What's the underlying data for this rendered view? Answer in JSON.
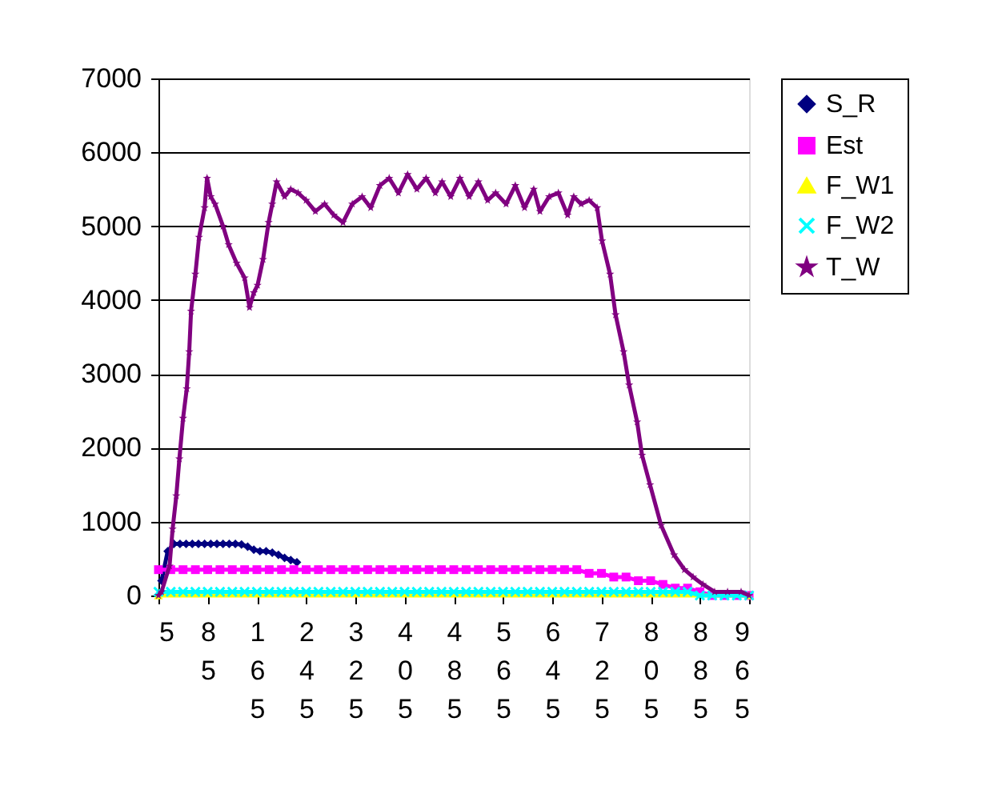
{
  "chart_data": {
    "type": "line",
    "xlim": [
      5,
      965
    ],
    "xticks": [
      5,
      85,
      165,
      245,
      325,
      405,
      485,
      565,
      645,
      725,
      805,
      885,
      965
    ],
    "ylim": [
      0,
      7000
    ],
    "yticks": [
      0,
      1000,
      2000,
      3000,
      4000,
      5000,
      6000,
      7000
    ],
    "grid": "y",
    "legend": "right",
    "line_style": "solid",
    "series": [
      {
        "name": "S_R",
        "color": "#000080",
        "marker": "diamond",
        "x": [
          10,
          20,
          30,
          40,
          50,
          60,
          70,
          80,
          90,
          100,
          110,
          120,
          130,
          140,
          150,
          160,
          170,
          180,
          190,
          200,
          210,
          220,
          230
        ],
        "values": [
          200,
          600,
          700,
          700,
          700,
          700,
          700,
          700,
          700,
          700,
          700,
          700,
          700,
          690,
          660,
          620,
          600,
          600,
          580,
          550,
          510,
          480,
          450
        ]
      },
      {
        "name": "Est",
        "color": "#ff00ff",
        "marker": "square",
        "x": [
          5,
          25,
          45,
          65,
          85,
          105,
          125,
          145,
          165,
          185,
          205,
          225,
          245,
          265,
          285,
          305,
          325,
          345,
          365,
          385,
          405,
          425,
          445,
          465,
          485,
          505,
          525,
          545,
          565,
          585,
          605,
          625,
          645,
          665,
          685,
          705,
          725,
          745,
          765,
          785,
          805,
          825,
          845,
          865,
          885,
          905,
          925,
          945,
          965
        ],
        "values": [
          350,
          350,
          350,
          350,
          350,
          350,
          350,
          350,
          350,
          350,
          350,
          350,
          350,
          350,
          350,
          350,
          350,
          350,
          350,
          350,
          350,
          350,
          350,
          350,
          350,
          350,
          350,
          350,
          350,
          350,
          350,
          350,
          350,
          350,
          350,
          300,
          300,
          250,
          250,
          200,
          200,
          150,
          100,
          100,
          50,
          0,
          0,
          0,
          0
        ]
      },
      {
        "name": "F_W1",
        "color": "#ffff00",
        "marker": "triangle",
        "x": [
          5,
          965
        ],
        "values": [
          0,
          0
        ]
      },
      {
        "name": "F_W2",
        "color": "#00ffff",
        "marker": "cross",
        "x": [
          5,
          25,
          45,
          65,
          85,
          105,
          125,
          145,
          165,
          185,
          205,
          225,
          245,
          265,
          285,
          305,
          325,
          345,
          365,
          385,
          405,
          425,
          445,
          465,
          485,
          505,
          525,
          545,
          565,
          585,
          605,
          625,
          645,
          665,
          685,
          705,
          725,
          745,
          765,
          785,
          805,
          825,
          845,
          865,
          885,
          905,
          925,
          945,
          965
        ],
        "values": [
          50,
          50,
          50,
          50,
          50,
          50,
          50,
          50,
          50,
          50,
          50,
          50,
          50,
          50,
          50,
          50,
          50,
          50,
          50,
          50,
          50,
          50,
          50,
          50,
          50,
          50,
          50,
          50,
          50,
          50,
          50,
          50,
          50,
          50,
          50,
          50,
          50,
          50,
          50,
          50,
          50,
          50,
          50,
          50,
          0,
          0,
          0,
          0,
          0
        ]
      },
      {
        "name": "T_W",
        "color": "#800080",
        "marker": "star",
        "x": [
          5,
          10,
          23,
          28,
          34,
          39,
          45,
          51,
          55,
          58,
          65,
          71,
          80,
          84,
          90,
          97,
          110,
          119,
          132,
          145,
          153,
          160,
          166,
          175,
          184,
          190,
          197,
          210,
          220,
          232,
          245,
          260,
          275,
          290,
          305,
          320,
          336,
          350,
          365,
          380,
          395,
          410,
          425,
          440,
          455,
          466,
          480,
          495,
          510,
          525,
          540,
          553,
          570,
          585,
          600,
          615,
          625,
          640,
          655,
          670,
          680,
          692,
          705,
          718,
          726,
          739,
          748,
          761,
          770,
          783,
          791,
          804,
          822,
          843,
          860,
          874,
          890,
          909,
          930,
          952,
          965
        ],
        "values": [
          0,
          50,
          400,
          900,
          1350,
          1850,
          2400,
          2800,
          3300,
          3850,
          4350,
          4850,
          5250,
          5650,
          5400,
          5300,
          5000,
          4750,
          4500,
          4300,
          3900,
          4100,
          4200,
          4550,
          5050,
          5300,
          5600,
          5400,
          5500,
          5450,
          5350,
          5200,
          5300,
          5150,
          5050,
          5300,
          5400,
          5250,
          5550,
          5650,
          5450,
          5700,
          5500,
          5650,
          5450,
          5600,
          5400,
          5650,
          5400,
          5600,
          5350,
          5450,
          5300,
          5550,
          5250,
          5500,
          5200,
          5400,
          5450,
          5150,
          5400,
          5300,
          5350,
          5250,
          4800,
          4350,
          3800,
          3300,
          2850,
          2350,
          1900,
          1500,
          950,
          550,
          350,
          250,
          150,
          50,
          50,
          50,
          0
        ]
      }
    ]
  }
}
